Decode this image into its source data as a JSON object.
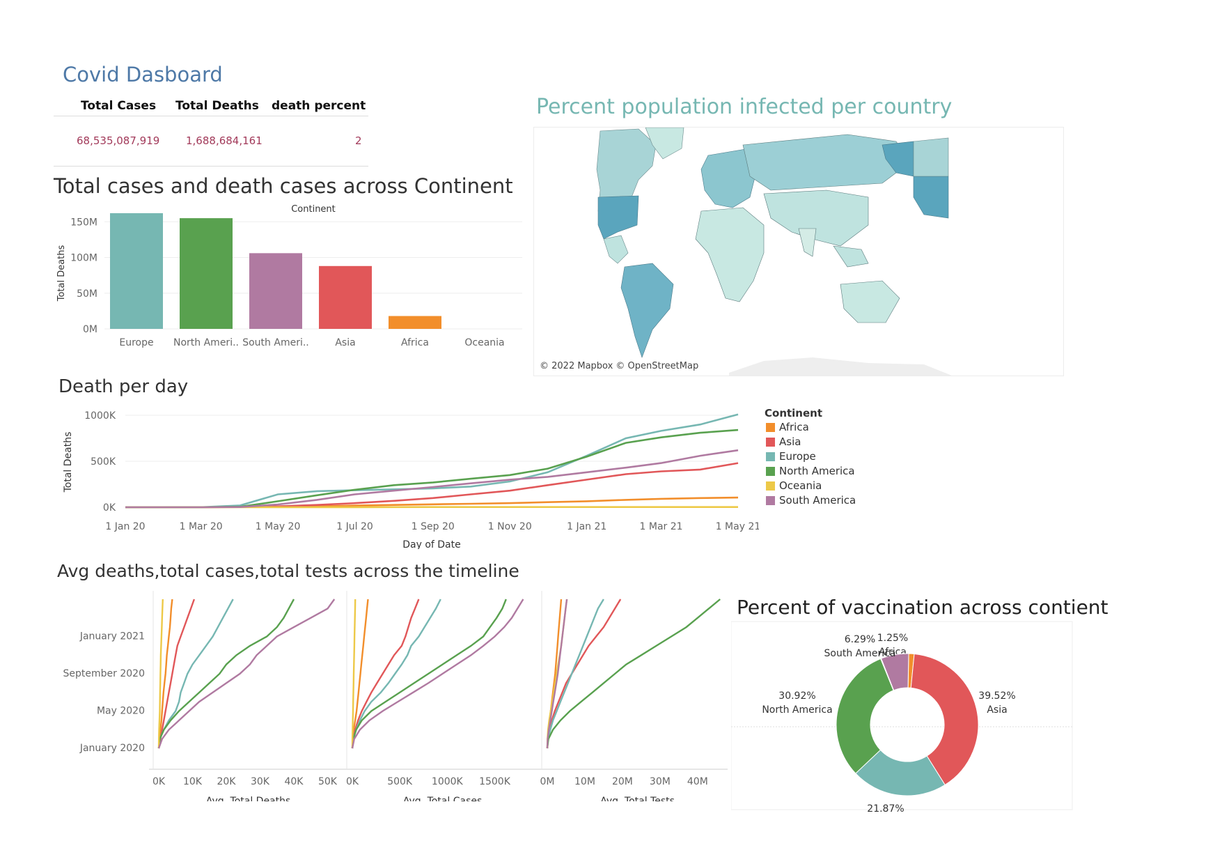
{
  "dashboard": {
    "title": "Covid Dasboard",
    "kpi": {
      "headers": [
        "Total Cases",
        "Total Deaths",
        "death percent"
      ],
      "values": [
        "68,535,087,919",
        "1,688,684,161",
        "2"
      ]
    }
  },
  "colors": {
    "Africa": "#f28e2b",
    "Asia": "#e15759",
    "Europe": "#76b7b2",
    "North America": "#59a14f",
    "Oceania": "#edc948",
    "South America": "#b07aa1"
  },
  "map": {
    "title": "Percent population infected per country",
    "credit": "© 2022 Mapbox © OpenStreetMap"
  },
  "chart_data": [
    {
      "id": "bar",
      "type": "bar",
      "title": "Total cases and death cases across Continent",
      "header": "Continent",
      "ylabel": "Total Deaths",
      "categories": [
        "Europe",
        "North Ameri..",
        "South Ameri..",
        "Asia",
        "Africa",
        "Oceania"
      ],
      "series_keys": [
        "Europe",
        "North America",
        "South America",
        "Asia",
        "Africa",
        "Oceania"
      ],
      "values": [
        162,
        155,
        106,
        88,
        18,
        0
      ],
      "value_unit": "M",
      "ylim": [
        0,
        160
      ],
      "yticks": [
        0,
        50,
        100,
        150
      ],
      "ytick_labels": [
        "0M",
        "50M",
        "100M",
        "150M"
      ]
    },
    {
      "id": "line",
      "type": "line",
      "title": "Death per day",
      "xlabel": "Day of Date",
      "ylabel": "Total Deaths",
      "x_ticks": [
        "1 Jan 20",
        "1 Mar 20",
        "1 May 20",
        "1 Jul 20",
        "1 Sep 20",
        "1 Nov 20",
        "1 Jan 21",
        "1 Mar 21",
        "1 May 21"
      ],
      "x_dates": [
        "2020-01-01",
        "2020-02-01",
        "2020-03-01",
        "2020-04-01",
        "2020-05-01",
        "2020-06-01",
        "2020-07-01",
        "2020-08-01",
        "2020-09-01",
        "2020-10-01",
        "2020-11-01",
        "2020-12-01",
        "2021-01-01",
        "2021-02-01",
        "2021-03-01",
        "2021-04-01",
        "2021-05-01"
      ],
      "ylim": [
        0,
        1000000
      ],
      "yticks": [
        0,
        500000,
        1000000
      ],
      "ytick_labels": [
        "0K",
        "500K",
        "1000K"
      ],
      "legend_title": "Continent",
      "series": [
        {
          "name": "Africa",
          "values": [
            0,
            0,
            0,
            2000,
            5000,
            10000,
            18000,
            25000,
            32000,
            38000,
            45000,
            55000,
            65000,
            80000,
            92000,
            100000,
            105000
          ]
        },
        {
          "name": "Asia",
          "values": [
            0,
            0,
            1000,
            3000,
            10000,
            25000,
            45000,
            70000,
            100000,
            140000,
            180000,
            240000,
            300000,
            360000,
            390000,
            410000,
            480000
          ]
        },
        {
          "name": "Europe",
          "values": [
            0,
            0,
            1000,
            20000,
            140000,
            175000,
            185000,
            195000,
            205000,
            225000,
            280000,
            380000,
            560000,
            750000,
            830000,
            900000,
            1010000
          ]
        },
        {
          "name": "North America",
          "values": [
            0,
            0,
            1000,
            5000,
            65000,
            130000,
            190000,
            240000,
            270000,
            310000,
            350000,
            420000,
            550000,
            700000,
            760000,
            810000,
            840000
          ]
        },
        {
          "name": "Oceania",
          "values": [
            0,
            0,
            0,
            0,
            1000,
            1000,
            1000,
            1500,
            2000,
            2000,
            2000,
            2000,
            2000,
            2000,
            2000,
            2000,
            2500
          ]
        },
        {
          "name": "South America",
          "values": [
            0,
            0,
            0,
            2000,
            30000,
            80000,
            140000,
            180000,
            220000,
            260000,
            300000,
            330000,
            380000,
            430000,
            480000,
            560000,
            620000
          ]
        }
      ]
    },
    {
      "id": "multi",
      "type": "line",
      "title": "Avg deaths,total cases,total tests across the timeline",
      "y_dates": [
        "2020-01-01",
        "2020-02-01",
        "2020-03-01",
        "2020-04-01",
        "2020-05-01",
        "2020-06-01",
        "2020-07-01",
        "2020-08-01",
        "2020-09-01",
        "2020-10-01",
        "2020-11-01",
        "2020-12-01",
        "2021-01-01",
        "2021-02-01",
        "2021-03-01",
        "2021-04-01",
        "2021-05-01"
      ],
      "y_ticks": [
        "January 2020",
        "May 2020",
        "September 2020",
        "January 2021"
      ],
      "y_tick_months": [
        0,
        4,
        8,
        12
      ],
      "panels": [
        {
          "xlabel": "Avg. Total Deaths",
          "xlim": [
            0,
            53000
          ],
          "xticks": [
            0,
            10000,
            20000,
            30000,
            40000,
            50000
          ],
          "xtick_labels": [
            "0K",
            "10K",
            "20K",
            "30K",
            "40K",
            "50K"
          ],
          "series": [
            {
              "name": "Africa",
              "values": [
                0,
                200,
                500,
                800,
                1000,
                1200,
                1400,
                1700,
                2000,
                2200,
                2400,
                2700,
                3000,
                3300,
                3500,
                3700,
                4000
              ]
            },
            {
              "name": "Asia",
              "values": [
                0,
                500,
                1000,
                1500,
                2000,
                2500,
                3000,
                3500,
                4000,
                4500,
                5000,
                5500,
                6500,
                7500,
                8500,
                9500,
                10500
              ]
            },
            {
              "name": "Europe",
              "values": [
                0,
                300,
                1500,
                3000,
                5000,
                6000,
                6500,
                7500,
                8500,
                10000,
                12000,
                14000,
                16000,
                17500,
                19000,
                20500,
                22000
              ]
            },
            {
              "name": "North America",
              "values": [
                0,
                300,
                1500,
                3500,
                6000,
                9000,
                12000,
                15000,
                18000,
                20000,
                23000,
                27000,
                32000,
                35000,
                37000,
                38500,
                40000
              ]
            },
            {
              "name": "Oceania",
              "values": [
                0,
                50,
                100,
                200,
                300,
                350,
                400,
                450,
                500,
                550,
                600,
                700,
                800,
                900,
                1000,
                1100,
                1200
              ]
            },
            {
              "name": "South America",
              "values": [
                0,
                1000,
                3000,
                6000,
                9000,
                12000,
                16000,
                20000,
                24000,
                27000,
                29000,
                32000,
                35000,
                40000,
                45000,
                50000,
                52000
              ]
            }
          ]
        },
        {
          "xlabel": "Avg. Total Cases",
          "xlim": [
            0,
            1900000
          ],
          "xticks": [
            0,
            500000,
            1000000,
            1500000
          ],
          "xtick_labels": [
            "0K",
            "500K",
            "1000K",
            "1500K"
          ],
          "series": [
            {
              "name": "Africa",
              "values": [
                0,
                5000,
                15000,
                30000,
                45000,
                55000,
                65000,
                75000,
                85000,
                95000,
                105000,
                115000,
                125000,
                135000,
                145000,
                155000,
                165000
              ]
            },
            {
              "name": "Asia",
              "values": [
                0,
                10000,
                30000,
                60000,
                100000,
                150000,
                200000,
                260000,
                320000,
                380000,
                440000,
                520000,
                560000,
                590000,
                620000,
                660000,
                700000
              ]
            },
            {
              "name": "Europe",
              "values": [
                0,
                10000,
                40000,
                80000,
                130000,
                200000,
                300000,
                380000,
                450000,
                520000,
                580000,
                620000,
                700000,
                760000,
                820000,
                880000,
                930000
              ]
            },
            {
              "name": "North America",
              "values": [
                0,
                10000,
                40000,
                100000,
                200000,
                350000,
                500000,
                650000,
                800000,
                950000,
                1100000,
                1250000,
                1380000,
                1450000,
                1520000,
                1580000,
                1620000
              ]
            },
            {
              "name": "Oceania",
              "values": [
                0,
                1000,
                3000,
                5000,
                7000,
                9000,
                11000,
                13000,
                15000,
                17000,
                19000,
                21000,
                23000,
                25000,
                27000,
                29000,
                31000
              ]
            },
            {
              "name": "South America",
              "values": [
                0,
                20000,
                80000,
                180000,
                320000,
                480000,
                640000,
                800000,
                950000,
                1100000,
                1250000,
                1380000,
                1500000,
                1600000,
                1680000,
                1740000,
                1800000
              ]
            }
          ]
        },
        {
          "xlabel": "Avg. Total Tests",
          "xlim": [
            0,
            48000000
          ],
          "xticks": [
            0,
            10000000,
            20000000,
            30000000,
            40000000
          ],
          "xtick_labels": [
            "0M",
            "10M",
            "20M",
            "30M",
            "40M"
          ],
          "series": [
            {
              "name": "Africa",
              "values": [
                0,
                100000,
                300000,
                600000,
                900000,
                1200000,
                1500000,
                1800000,
                2100000,
                2300000,
                2500000,
                2700000,
                2900000,
                3100000,
                3300000,
                3500000,
                3700000
              ]
            },
            {
              "name": "Asia",
              "values": [
                0,
                200000,
                600000,
                1200000,
                2000000,
                3000000,
                4000000,
                5000000,
                6500000,
                8000000,
                9500000,
                11000000,
                13000000,
                15000000,
                16500000,
                18000000,
                19500000
              ]
            },
            {
              "name": "Europe",
              "values": [
                0,
                200000,
                800000,
                1500000,
                2500000,
                3500000,
                4500000,
                5500000,
                6500000,
                7500000,
                8500000,
                9500000,
                10500000,
                11500000,
                12500000,
                13500000,
                15000000
              ]
            },
            {
              "name": "North America",
              "values": [
                0,
                300000,
                1500000,
                3500000,
                6000000,
                9000000,
                12000000,
                15000000,
                18000000,
                21000000,
                25000000,
                29000000,
                33000000,
                37000000,
                40000000,
                43000000,
                46000000
              ]
            },
            {
              "name": "Oceania",
              "values": [
                0,
                50000,
                200000,
                500000,
                900000,
                1300000,
                1700000,
                2100000,
                2500000,
                2900000,
                3300000,
                3700000,
                4000000,
                4300000,
                4600000,
                4900000,
                5200000
              ]
            },
            {
              "name": "South America",
              "values": [
                0,
                100000,
                400000,
                800000,
                1200000,
                1600000,
                2000000,
                2400000,
                2800000,
                3100000,
                3400000,
                3700000,
                4000000,
                4300000,
                4600000,
                4900000,
                5200000
              ]
            }
          ]
        }
      ]
    },
    {
      "id": "donut",
      "type": "pie",
      "title": "Percent of vaccination across contient",
      "slices": [
        {
          "name": "Africa",
          "value": 1.25,
          "label": "1.25%",
          "sub": "Africa"
        },
        {
          "name": "Asia",
          "value": 39.52,
          "label": "39.52%",
          "sub": "Asia"
        },
        {
          "name": "Europe",
          "value": 21.87,
          "label": "21.87%",
          "sub": ""
        },
        {
          "name": "North America",
          "value": 30.92,
          "label": "30.92%",
          "sub": "North America"
        },
        {
          "name": "Oceania",
          "value": 0.15,
          "label": "",
          "sub": ""
        },
        {
          "name": "South America",
          "value": 6.29,
          "label": "6.29%",
          "sub": "South America"
        }
      ]
    }
  ]
}
